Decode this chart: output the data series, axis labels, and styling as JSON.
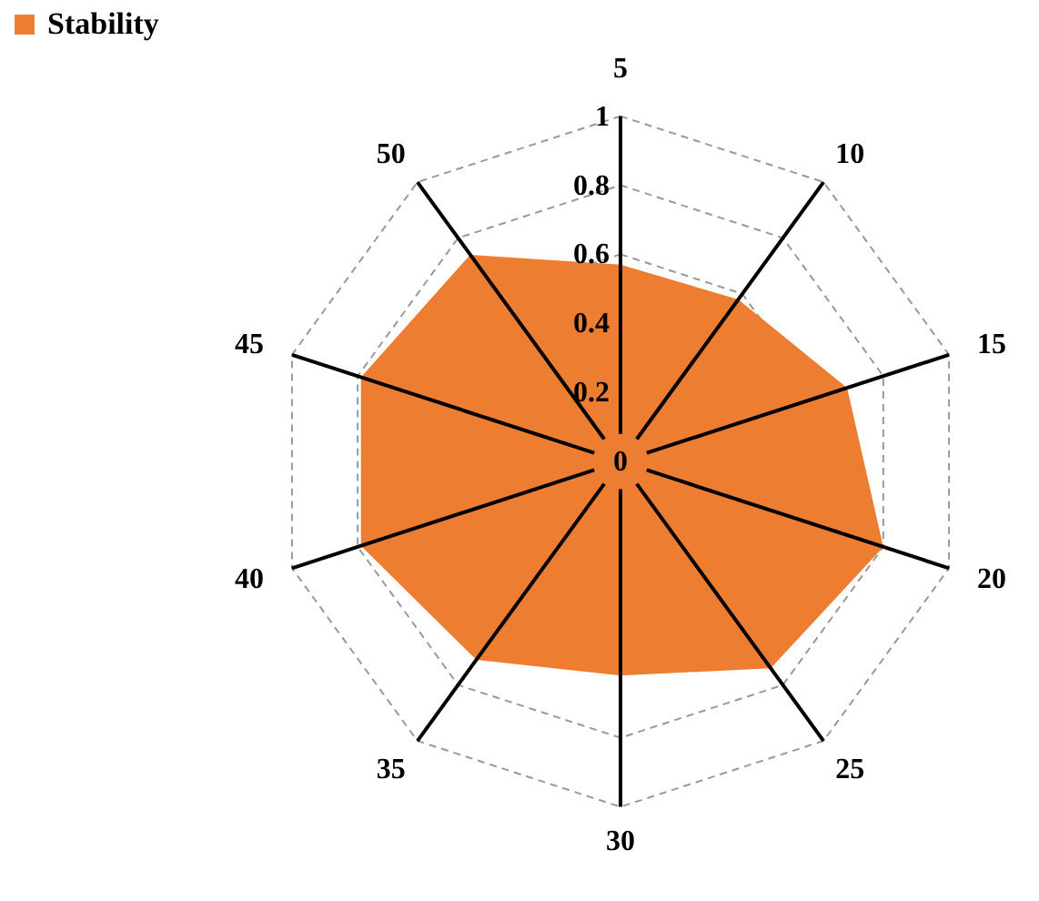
{
  "chart_data": {
    "type": "radar",
    "categories": [
      "5",
      "10",
      "15",
      "20",
      "25",
      "30",
      "35",
      "40",
      "45",
      "50"
    ],
    "series": [
      {
        "name": "Stability",
        "color": "#ed7d31",
        "values": [
          0.57,
          0.58,
          0.69,
          0.8,
          0.74,
          0.62,
          0.71,
          0.79,
          0.79,
          0.74
        ]
      }
    ],
    "ylim": [
      0,
      1
    ],
    "yticks": [
      0,
      0.2,
      0.4,
      0.6,
      0.8,
      1
    ],
    "grid": true,
    "legend": "top left",
    "line_style": "dashed"
  }
}
